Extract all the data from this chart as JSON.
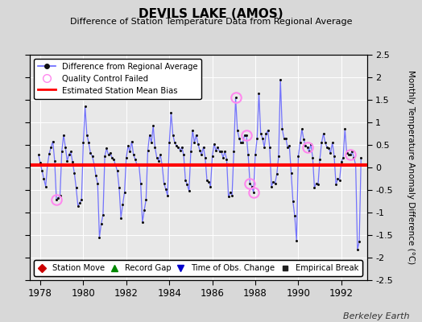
{
  "title": "DEVILS LAKE (AMOS)",
  "subtitle": "Difference of Station Temperature Data from Regional Average",
  "ylabel": "Monthly Temperature Anomaly Difference (°C)",
  "xlim": [
    1977.5,
    1993.2
  ],
  "ylim": [
    -2.5,
    2.5
  ],
  "yticks": [
    -2.5,
    -2,
    -1.5,
    -1,
    -0.5,
    0,
    0.5,
    1,
    1.5,
    2,
    2.5
  ],
  "ytick_labels": [
    "-2.5",
    "-2",
    "-1.5",
    "-1",
    "-0.5",
    "0",
    "0.5",
    "1",
    "1.5",
    "2",
    "2.5"
  ],
  "xticks": [
    1978,
    1980,
    1982,
    1984,
    1986,
    1988,
    1990,
    1992
  ],
  "bias": 0.05,
  "bg_color": "#d8d8d8",
  "plot_bg": "#e8e8e8",
  "line_color": "#6666ff",
  "dot_color": "#111111",
  "bias_color": "#ff0000",
  "qc_color": "#ff88ee",
  "station_move_color": "#cc0000",
  "record_gap_color": "#008800",
  "time_obs_color": "#0000cc",
  "empirical_break_color": "#222222",
  "watermark": "Berkeley Earth",
  "times": [
    1977.917,
    1978.0,
    1978.083,
    1978.167,
    1978.25,
    1978.333,
    1978.417,
    1978.5,
    1978.583,
    1978.667,
    1978.75,
    1978.833,
    1978.917,
    1979.0,
    1979.083,
    1979.167,
    1979.25,
    1979.333,
    1979.417,
    1979.5,
    1979.583,
    1979.667,
    1979.75,
    1979.833,
    1979.917,
    1980.0,
    1980.083,
    1980.167,
    1980.25,
    1980.333,
    1980.417,
    1980.5,
    1980.583,
    1980.667,
    1980.75,
    1980.833,
    1980.917,
    1981.0,
    1981.083,
    1981.167,
    1981.25,
    1981.333,
    1981.417,
    1981.5,
    1981.583,
    1981.667,
    1981.75,
    1981.833,
    1981.917,
    1982.0,
    1982.083,
    1982.167,
    1982.25,
    1982.333,
    1982.417,
    1982.5,
    1982.583,
    1982.667,
    1982.75,
    1982.833,
    1982.917,
    1983.0,
    1983.083,
    1983.167,
    1983.25,
    1983.333,
    1983.417,
    1983.5,
    1983.583,
    1983.667,
    1983.75,
    1983.833,
    1983.917,
    1984.0,
    1984.083,
    1984.167,
    1984.25,
    1984.333,
    1984.417,
    1984.5,
    1984.583,
    1984.667,
    1984.75,
    1984.833,
    1984.917,
    1985.0,
    1985.083,
    1985.167,
    1985.25,
    1985.333,
    1985.417,
    1985.5,
    1985.583,
    1985.667,
    1985.75,
    1985.833,
    1985.917,
    1986.0,
    1986.083,
    1986.167,
    1986.25,
    1986.333,
    1986.417,
    1986.5,
    1986.583,
    1986.667,
    1986.75,
    1986.833,
    1986.917,
    1987.0,
    1987.083,
    1987.167,
    1987.25,
    1987.333,
    1987.417,
    1987.5,
    1987.583,
    1987.667,
    1987.75,
    1987.833,
    1987.917,
    1988.0,
    1988.083,
    1988.167,
    1988.25,
    1988.333,
    1988.417,
    1988.5,
    1988.583,
    1988.667,
    1988.75,
    1988.833,
    1988.917,
    1989.0,
    1989.083,
    1989.167,
    1989.25,
    1989.333,
    1989.417,
    1989.5,
    1989.583,
    1989.667,
    1989.75,
    1989.833,
    1989.917,
    1990.0,
    1990.083,
    1990.167,
    1990.25,
    1990.333,
    1990.417,
    1990.5,
    1990.583,
    1990.667,
    1990.75,
    1990.833,
    1990.917,
    1991.0,
    1991.083,
    1991.167,
    1991.25,
    1991.333,
    1991.417,
    1991.5,
    1991.583,
    1991.667,
    1991.75,
    1991.833,
    1991.917,
    1992.0,
    1992.083,
    1992.167,
    1992.25,
    1992.333,
    1992.417,
    1992.5,
    1992.583,
    1992.667,
    1992.75,
    1992.833,
    1992.917
  ],
  "values": [
    0.28,
    0.1,
    -0.08,
    -0.25,
    -0.42,
    0.05,
    0.31,
    0.45,
    0.58,
    0.15,
    -0.72,
    -0.68,
    -0.62,
    0.35,
    0.72,
    0.45,
    0.15,
    0.28,
    0.35,
    0.12,
    -0.12,
    -0.45,
    -0.85,
    -0.78,
    -0.72,
    0.55,
    1.35,
    0.72,
    0.55,
    0.32,
    0.25,
    0.08,
    -0.18,
    -0.35,
    -1.55,
    -1.25,
    -1.05,
    0.25,
    0.42,
    0.28,
    0.32,
    0.22,
    0.18,
    0.05,
    -0.08,
    -0.45,
    -1.12,
    -0.82,
    -0.55,
    0.22,
    0.48,
    0.35,
    0.58,
    0.28,
    0.18,
    0.05,
    0.08,
    -0.35,
    -1.22,
    -0.95,
    -0.72,
    0.38,
    0.72,
    0.55,
    0.92,
    0.45,
    0.22,
    0.15,
    0.28,
    0.05,
    -0.35,
    -0.48,
    -0.62,
    0.55,
    1.22,
    0.72,
    0.55,
    0.48,
    0.45,
    0.38,
    0.45,
    0.28,
    -0.28,
    -0.38,
    -0.52,
    0.35,
    0.82,
    0.55,
    0.72,
    0.52,
    0.38,
    0.28,
    0.45,
    0.22,
    -0.28,
    -0.32,
    -0.42,
    0.25,
    0.52,
    0.38,
    0.45,
    0.35,
    0.35,
    0.22,
    0.35,
    0.18,
    -0.65,
    -0.55,
    -0.62,
    0.35,
    1.55,
    0.82,
    0.65,
    0.55,
    0.55,
    0.72,
    0.72,
    0.28,
    -0.35,
    -0.42,
    -0.55,
    0.28,
    0.65,
    1.65,
    0.75,
    0.65,
    0.45,
    0.75,
    0.82,
    0.45,
    -0.42,
    -0.32,
    -0.35,
    -0.15,
    0.25,
    1.95,
    0.85,
    0.65,
    0.65,
    0.45,
    0.48,
    -0.12,
    -0.75,
    -1.08,
    -1.62,
    0.25,
    0.55,
    0.85,
    0.62,
    0.48,
    0.45,
    0.35,
    0.52,
    0.22,
    -0.45,
    -0.35,
    -0.38,
    0.18,
    0.55,
    0.75,
    0.55,
    0.45,
    0.42,
    0.32,
    0.55,
    0.25,
    -0.38,
    -0.25,
    -0.28,
    0.12,
    0.22,
    0.85,
    0.32,
    0.28,
    0.28,
    0.35,
    0.22,
    0.05,
    -1.82,
    -1.65,
    0.22
  ],
  "qc_times": [
    1978.75,
    1987.083,
    1987.583,
    1987.75,
    1987.917,
    1990.417,
    1992.417
  ],
  "qc_values": [
    -0.72,
    1.55,
    0.72,
    -0.35,
    -0.55,
    0.45,
    0.28
  ]
}
